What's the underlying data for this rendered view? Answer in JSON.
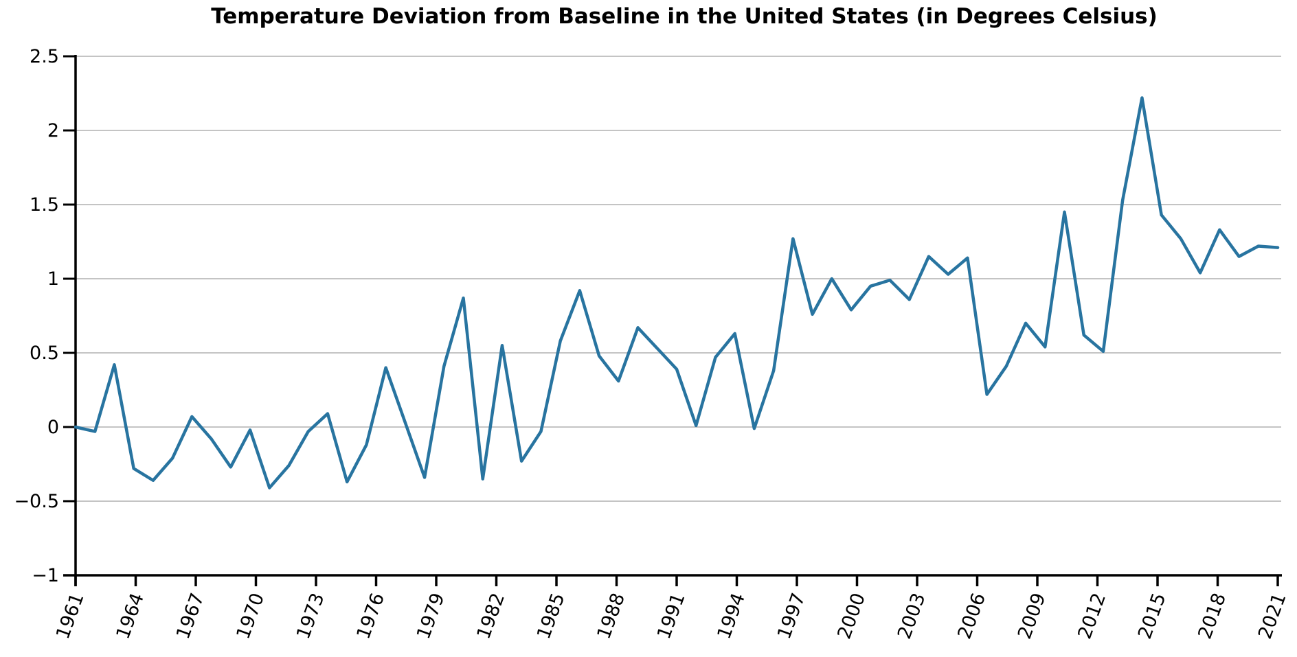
{
  "chart_data": {
    "type": "line",
    "title": "Temperature Deviation from Baseline in the United States (in Degrees Celsius)",
    "xlabel": "",
    "ylabel": "",
    "ylim": [
      -1,
      2.5
    ],
    "yticks": [
      2.5,
      2,
      1.5,
      1,
      0.5,
      0,
      -0.5,
      -1
    ],
    "ytick_labels": [
      "2.5",
      "2",
      "1.5",
      "1",
      "0.5",
      "0",
      "−0.5",
      "−1"
    ],
    "xtick_labels": [
      "1961",
      "1964",
      "1967",
      "1970",
      "1973",
      "1976",
      "1979",
      "1982",
      "1985",
      "1988",
      "1991",
      "1994",
      "1997",
      "2000",
      "2003",
      "2006",
      "2009",
      "2012",
      "2015",
      "2018",
      "2021"
    ],
    "grid": "horizontal",
    "line_color": "#2874a0",
    "series": [
      {
        "values": [
          0.0,
          -0.03,
          0.42,
          -0.28,
          -0.36,
          -0.21,
          0.07,
          -0.08,
          -0.27,
          -0.02,
          -0.41,
          -0.26,
          -0.03,
          0.09,
          -0.37,
          -0.12,
          0.4,
          0.03,
          -0.34,
          0.41,
          0.87,
          -0.35,
          0.55,
          -0.23,
          -0.03,
          0.58,
          0.92,
          0.48,
          0.31,
          0.67,
          0.53,
          0.39,
          0.01,
          0.47,
          0.63,
          -0.01,
          0.38,
          1.27,
          0.76,
          1.0,
          0.79,
          0.95,
          0.99,
          0.86,
          1.15,
          1.03,
          1.14,
          0.22,
          0.41,
          0.7,
          0.54,
          1.45,
          0.62,
          0.51,
          1.53,
          2.22,
          1.43,
          1.27,
          1.04,
          1.33,
          1.15,
          1.22,
          1.21
        ]
      }
    ]
  }
}
